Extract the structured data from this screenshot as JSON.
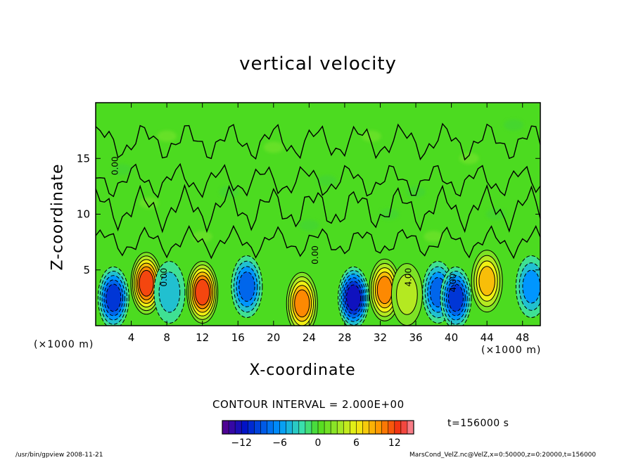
{
  "chart_data": {
    "type": "heatmap",
    "title": "vertical velocity",
    "xlabel": "X-coordinate",
    "ylabel": "Z-coordinate",
    "x_unit_label": "(×1000 m)",
    "z_unit_label": "(×1000 m)",
    "xlim": [
      0,
      50
    ],
    "ylim": [
      0,
      20
    ],
    "x_ticks": [
      "4",
      "8",
      "12",
      "16",
      "20",
      "24",
      "28",
      "32",
      "36",
      "40",
      "44",
      "48"
    ],
    "y_ticks": [
      "5",
      "10",
      "15"
    ],
    "contour_interval_text": "CONTOUR INTERVAL = 2.000E+00",
    "contour_labels": [
      "0.00",
      "0.00",
      "0.00",
      "4.00",
      "4.00"
    ],
    "colorbar": {
      "range": [
        -15,
        15
      ],
      "ticks": [
        "−12",
        "−6",
        "0",
        "6",
        "12"
      ]
    },
    "time_label": "t=156000 s",
    "cells": [
      {
        "x": 2.0,
        "z": 2.5,
        "value": -10
      },
      {
        "x": 5.7,
        "z": 3.8,
        "value": 12
      },
      {
        "x": 8.3,
        "z": 3.0,
        "value": -4
      },
      {
        "x": 12.0,
        "z": 3.0,
        "value": 12
      },
      {
        "x": 17.0,
        "z": 3.5,
        "value": -8
      },
      {
        "x": 23.2,
        "z": 2.0,
        "value": 10
      },
      {
        "x": 29.0,
        "z": 2.5,
        "value": -12
      },
      {
        "x": 32.5,
        "z": 3.2,
        "value": 9
      },
      {
        "x": 35.0,
        "z": 2.8,
        "value": 4
      },
      {
        "x": 38.5,
        "z": 3.0,
        "value": -8
      },
      {
        "x": 40.5,
        "z": 2.5,
        "value": -9
      },
      {
        "x": 44.0,
        "z": 4.0,
        "value": 7
      },
      {
        "x": 49.0,
        "z": 3.5,
        "value": -5
      }
    ]
  },
  "footer": {
    "left_text": "/usr/bin/gpview   2008-11-21",
    "right_text": "MarsCond_VelZ.nc@VelZ,x=0:50000,z=0:20000,t=156000"
  },
  "colors": {
    "background_field": "#4cdb20",
    "frame": "#000000"
  }
}
